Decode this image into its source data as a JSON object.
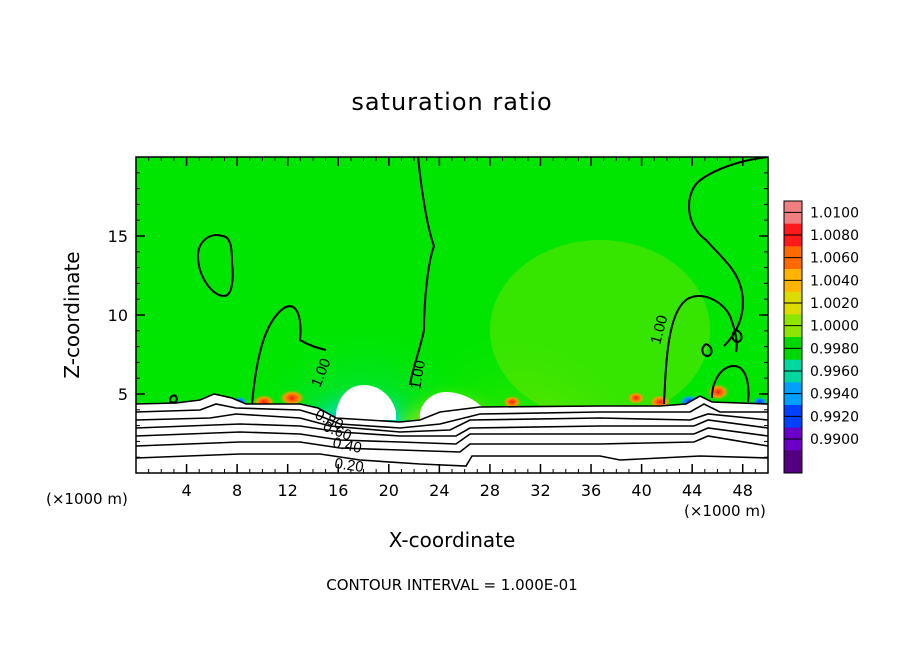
{
  "chart_data": {
    "type": "heatmap",
    "title": "saturation ratio",
    "xlabel": "X-coordinate",
    "ylabel": "Z-coordinate",
    "x_unit": "(×1000 m)",
    "z_unit": "(×1000 m)",
    "xlim": [
      0,
      50
    ],
    "ylim": [
      0,
      20
    ],
    "x_ticks": [
      4,
      8,
      12,
      16,
      20,
      24,
      28,
      32,
      36,
      40,
      44,
      48
    ],
    "y_ticks": [
      5,
      10,
      15
    ],
    "colorbar": {
      "levels": [
        1.01,
        1.008,
        1.006,
        1.004,
        1.002,
        1.0,
        0.998,
        0.996,
        0.994,
        0.992,
        0.99
      ],
      "labels": [
        "1.0100",
        "1.0080",
        "1.0060",
        "1.0040",
        "1.0020",
        "1.0000",
        "0.9980",
        "0.9960",
        "0.9940",
        "0.9920",
        "0.9900"
      ],
      "colors": [
        "#f08080",
        "#ff1a1a",
        "#ff6a00",
        "#ffb400",
        "#dcdc00",
        "#8ce600",
        "#00d800",
        "#00d8a0",
        "#00a0ff",
        "#0040ff",
        "#6a00c8",
        "#520080"
      ]
    },
    "contour_labels": [
      "1.00",
      "1.00",
      "1.00",
      "0.80",
      "0.60",
      "0.40",
      "0.20"
    ],
    "contour_interval_text": "CONTOUR INTERVAL = 1.000E-01",
    "background_color": "#00e600",
    "grid": false,
    "legend": "right"
  }
}
